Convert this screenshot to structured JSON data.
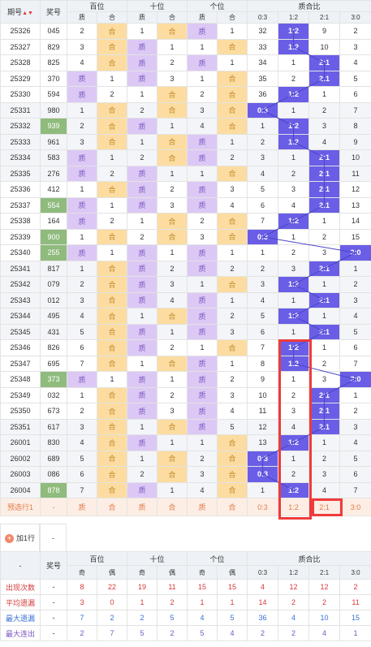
{
  "header": {
    "period": "期号",
    "draw": "奖号",
    "groups": [
      "百位",
      "十位",
      "个位",
      "质合比"
    ],
    "sub": [
      "质",
      "合",
      "质",
      "合",
      "质",
      "合",
      "0:3",
      "1:2",
      "2:1",
      "3:0"
    ]
  },
  "rows": [
    {
      "p": "25326",
      "n": "045",
      "b": [
        "2",
        "合"
      ],
      "s": [
        "1",
        "合"
      ],
      "g": [
        "质",
        "1"
      ],
      "r": [
        "32",
        "1:2",
        "9",
        "2"
      ],
      "hl": 1
    },
    {
      "p": "25327",
      "n": "829",
      "b": [
        "3",
        "合"
      ],
      "s": [
        "质",
        "1"
      ],
      "g": [
        "1",
        "合"
      ],
      "r": [
        "33",
        "1:2",
        "10",
        "3"
      ],
      "hl": 1
    },
    {
      "p": "25328",
      "n": "825",
      "b": [
        "4",
        "合"
      ],
      "s": [
        "质",
        "2"
      ],
      "g": [
        "质",
        "1"
      ],
      "r": [
        "34",
        "1",
        "2:1",
        "4"
      ],
      "hl": 2
    },
    {
      "p": "25329",
      "n": "370",
      "b": [
        "质",
        "1"
      ],
      "s": [
        "质",
        "3"
      ],
      "g": [
        "1",
        "合"
      ],
      "r": [
        "35",
        "2",
        "2:1",
        "5"
      ],
      "hl": 2
    },
    {
      "p": "25330",
      "n": "594",
      "b": [
        "质",
        "2"
      ],
      "s": [
        "1",
        "合"
      ],
      "g": [
        "2",
        "合"
      ],
      "r": [
        "36",
        "1:2",
        "1",
        "6"
      ],
      "hl": 1
    },
    {
      "p": "25331",
      "n": "980",
      "b": [
        "1",
        "合"
      ],
      "s": [
        "2",
        "合"
      ],
      "g": [
        "3",
        "合"
      ],
      "r": [
        "0:3",
        "1",
        "2",
        "7"
      ],
      "hl": 0
    },
    {
      "p": "25332",
      "n": "939",
      "b": [
        "2",
        "合"
      ],
      "s": [
        "质",
        "1"
      ],
      "g": [
        "4",
        "合"
      ],
      "r": [
        "1",
        "1:2",
        "3",
        "8"
      ],
      "hl": 1,
      "g_draw": true
    },
    {
      "p": "25333",
      "n": "961",
      "b": [
        "3",
        "合"
      ],
      "s": [
        "1",
        "合"
      ],
      "g": [
        "质",
        "1"
      ],
      "r": [
        "2",
        "1:2",
        "4",
        "9"
      ],
      "hl": 1
    },
    {
      "p": "25334",
      "n": "583",
      "b": [
        "质",
        "1"
      ],
      "s": [
        "2",
        "合"
      ],
      "g": [
        "质",
        "2"
      ],
      "r": [
        "3",
        "1",
        "2:1",
        "10"
      ],
      "hl": 2
    },
    {
      "p": "25335",
      "n": "276",
      "b": [
        "质",
        "2"
      ],
      "s": [
        "质",
        "1"
      ],
      "g": [
        "1",
        "合"
      ],
      "r": [
        "4",
        "2",
        "2:1",
        "11"
      ],
      "hl": 2
    },
    {
      "p": "25336",
      "n": "412",
      "b": [
        "1",
        "合"
      ],
      "s": [
        "质",
        "2"
      ],
      "g": [
        "质",
        "3"
      ],
      "r": [
        "5",
        "3",
        "2:1",
        "12"
      ],
      "hl": 2
    },
    {
      "p": "25337",
      "n": "554",
      "b": [
        "质",
        "1"
      ],
      "s": [
        "质",
        "3"
      ],
      "g": [
        "质",
        "4"
      ],
      "r": [
        "6",
        "4",
        "2:1",
        "13"
      ],
      "hl": 2,
      "g_draw": true
    },
    {
      "p": "25338",
      "n": "164",
      "b": [
        "质",
        "2"
      ],
      "s": [
        "1",
        "合"
      ],
      "g": [
        "2",
        "合"
      ],
      "r": [
        "7",
        "1:2",
        "1",
        "14"
      ],
      "hl": 1
    },
    {
      "p": "25339",
      "n": "900",
      "b": [
        "1",
        "合"
      ],
      "s": [
        "2",
        "合"
      ],
      "g": [
        "3",
        "合"
      ],
      "r": [
        "0:3",
        "1",
        "2",
        "15"
      ],
      "hl": 0,
      "g_draw": true
    },
    {
      "p": "25340",
      "n": "255",
      "b": [
        "质",
        "1"
      ],
      "s": [
        "质",
        "1"
      ],
      "g": [
        "质",
        "1"
      ],
      "r": [
        "1",
        "2",
        "3",
        "3:0"
      ],
      "hl": 3,
      "g_draw": true
    },
    {
      "p": "25341",
      "n": "817",
      "b": [
        "1",
        "合"
      ],
      "s": [
        "质",
        "2"
      ],
      "g": [
        "质",
        "2"
      ],
      "r": [
        "2",
        "3",
        "2:1",
        "1"
      ],
      "hl": 2
    },
    {
      "p": "25342",
      "n": "079",
      "b": [
        "2",
        "合"
      ],
      "s": [
        "质",
        "3"
      ],
      "g": [
        "1",
        "合"
      ],
      "r": [
        "3",
        "1:2",
        "1",
        "2"
      ],
      "hl": 1
    },
    {
      "p": "25343",
      "n": "012",
      "b": [
        "3",
        "合"
      ],
      "s": [
        "质",
        "4"
      ],
      "g": [
        "质",
        "1"
      ],
      "r": [
        "4",
        "1",
        "2:1",
        "3"
      ],
      "hl": 2
    },
    {
      "p": "25344",
      "n": "495",
      "b": [
        "4",
        "合"
      ],
      "s": [
        "1",
        "合"
      ],
      "g": [
        "质",
        "2"
      ],
      "r": [
        "5",
        "1:2",
        "1",
        "4"
      ],
      "hl": 1
    },
    {
      "p": "25345",
      "n": "431",
      "b": [
        "5",
        "合"
      ],
      "s": [
        "质",
        "1"
      ],
      "g": [
        "质",
        "3"
      ],
      "r": [
        "6",
        "1",
        "2:1",
        "5"
      ],
      "hl": 2
    },
    {
      "p": "25346",
      "n": "826",
      "b": [
        "6",
        "合"
      ],
      "s": [
        "质",
        "2"
      ],
      "g": [
        "1",
        "合"
      ],
      "r": [
        "7",
        "1:2",
        "1",
        "6"
      ],
      "hl": 1
    },
    {
      "p": "25347",
      "n": "695",
      "b": [
        "7",
        "合"
      ],
      "s": [
        "1",
        "合"
      ],
      "g": [
        "质",
        "1"
      ],
      "r": [
        "8",
        "1:2",
        "2",
        "7"
      ],
      "hl": 1
    },
    {
      "p": "25348",
      "n": "373",
      "b": [
        "质",
        "1"
      ],
      "s": [
        "质",
        "1"
      ],
      "g": [
        "质",
        "2"
      ],
      "r": [
        "9",
        "1",
        "3",
        "3:0"
      ],
      "hl": 3,
      "g_draw": true
    },
    {
      "p": "25349",
      "n": "032",
      "b": [
        "1",
        "合"
      ],
      "s": [
        "质",
        "2"
      ],
      "g": [
        "质",
        "3"
      ],
      "r": [
        "10",
        "2",
        "2:1",
        "1"
      ],
      "hl": 2
    },
    {
      "p": "25350",
      "n": "673",
      "b": [
        "2",
        "合"
      ],
      "s": [
        "质",
        "3"
      ],
      "g": [
        "质",
        "4"
      ],
      "r": [
        "11",
        "3",
        "2:1",
        "2"
      ],
      "hl": 2
    },
    {
      "p": "25351",
      "n": "617",
      "b": [
        "3",
        "合"
      ],
      "s": [
        "1",
        "合"
      ],
      "g": [
        "质",
        "5"
      ],
      "r": [
        "12",
        "4",
        "2:1",
        "3"
      ],
      "hl": 2
    },
    {
      "p": "26001",
      "n": "830",
      "b": [
        "4",
        "合"
      ],
      "s": [
        "质",
        "1"
      ],
      "g": [
        "1",
        "合"
      ],
      "r": [
        "13",
        "1:2",
        "1",
        "4"
      ],
      "hl": 1
    },
    {
      "p": "26002",
      "n": "689",
      "b": [
        "5",
        "合"
      ],
      "s": [
        "1",
        "合"
      ],
      "g": [
        "2",
        "合"
      ],
      "r": [
        "0:3",
        "1",
        "2",
        "5"
      ],
      "hl": 0
    },
    {
      "p": "26003",
      "n": "086",
      "b": [
        "6",
        "合"
      ],
      "s": [
        "2",
        "合"
      ],
      "g": [
        "3",
        "合"
      ],
      "r": [
        "0:3",
        "2",
        "3",
        "6"
      ],
      "hl": 0
    },
    {
      "p": "26004",
      "n": "878",
      "b": [
        "7",
        "合"
      ],
      "s": [
        "质",
        "1"
      ],
      "g": [
        "4",
        "合"
      ],
      "r": [
        "1",
        "1:2",
        "4",
        "7"
      ],
      "hl": 1,
      "g_draw": true
    }
  ],
  "predict": {
    "label": "预选行1",
    "dash": "-",
    "cells": [
      "质",
      "合",
      "质",
      "合",
      "质",
      "合",
      "0:3",
      "1:2",
      "2:1",
      "3:0"
    ]
  },
  "add_row": {
    "label": "加1行",
    "dash": "-"
  },
  "stats_header": {
    "dash": "-",
    "draw": "奖号",
    "groups": [
      "百位",
      "十位",
      "个位",
      "质合比"
    ],
    "sub": [
      "奇",
      "偶",
      "奇",
      "偶",
      "奇",
      "偶",
      "0:3",
      "1:2",
      "2:1",
      "3:0"
    ]
  },
  "stats": [
    {
      "label": "出现次数",
      "dash": "-",
      "vals": [
        "8",
        "22",
        "19",
        "11",
        "15",
        "15",
        "4",
        "12",
        "12",
        "2"
      ],
      "cls": "stat-red"
    },
    {
      "label": "平均遗漏",
      "dash": "-",
      "vals": [
        "3",
        "0",
        "1",
        "2",
        "1",
        "1",
        "14",
        "2",
        "2",
        "11"
      ],
      "cls": "stat-red"
    },
    {
      "label": "最大遗漏",
      "dash": "-",
      "vals": [
        "7",
        "2",
        "2",
        "5",
        "4",
        "5",
        "36",
        "4",
        "10",
        "15"
      ],
      "cls": "stat-blue"
    },
    {
      "label": "最大连出",
      "dash": "-",
      "vals": [
        "2",
        "7",
        "5",
        "2",
        "5",
        "4",
        "2",
        "2",
        "4",
        "1"
      ],
      "cls": "stat-purple"
    }
  ]
}
